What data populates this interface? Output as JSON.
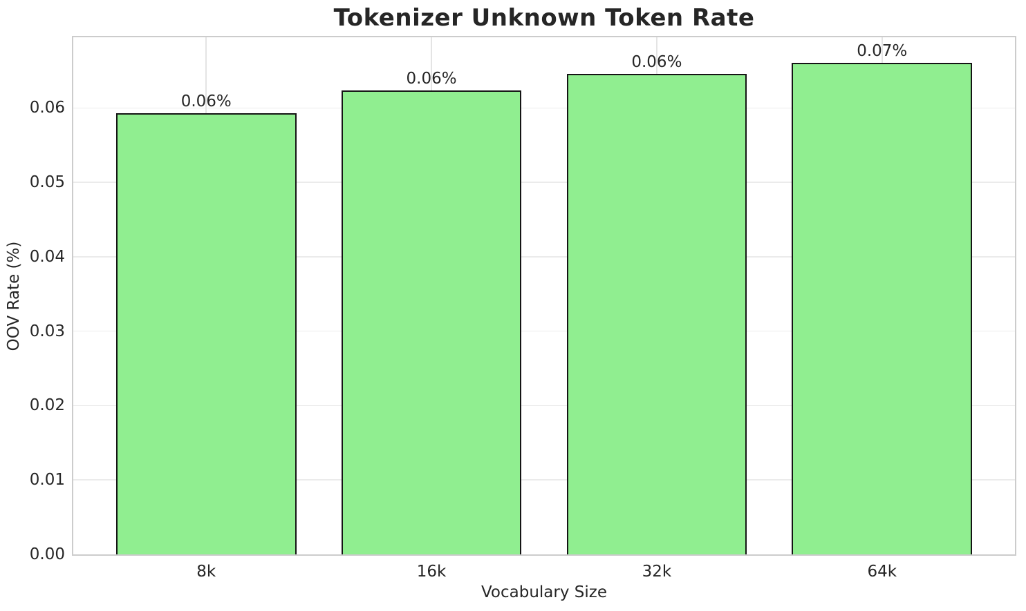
{
  "chart_data": {
    "type": "bar",
    "title": "Tokenizer Unknown Token Rate",
    "xlabel": "Vocabulary Size",
    "ylabel": "OOV Rate (%)",
    "categories": [
      "8k",
      "16k",
      "32k",
      "64k"
    ],
    "values": [
      0.0593,
      0.0624,
      0.0646,
      0.0661
    ],
    "bar_labels": [
      "0.06%",
      "0.06%",
      "0.06%",
      "0.07%"
    ],
    "yticks": [
      0.0,
      0.01,
      0.02,
      0.03,
      0.04,
      0.05,
      0.06
    ],
    "ytick_labels": [
      "0.00",
      "0.01",
      "0.02",
      "0.03",
      "0.04",
      "0.05",
      "0.06"
    ],
    "ylim": [
      0,
      0.0695
    ],
    "xlim": [
      -0.59,
      3.59
    ],
    "bar_width": 0.8,
    "grid": true,
    "legend": "none",
    "colors": {
      "bar_fill": "#90EE90",
      "bar_edge": "#141414",
      "grid_h": "#ebebeb",
      "grid_v": "#e4e4e4",
      "spine": "#cccccc",
      "text": "#262626",
      "background": "#ffffff"
    }
  }
}
